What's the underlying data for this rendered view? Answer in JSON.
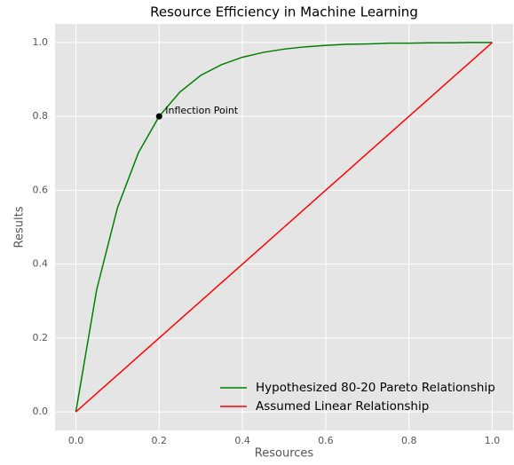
{
  "chart_data": {
    "type": "line",
    "title": "Resource Efficiency in Machine Learning",
    "xlabel": "Resources",
    "ylabel": "Results",
    "x": [
      0,
      0.05,
      0.1,
      0.15,
      0.2,
      0.25,
      0.3,
      0.35,
      0.4,
      0.45,
      0.5,
      0.55,
      0.6,
      0.65,
      0.7,
      0.75,
      0.8,
      0.85,
      0.9,
      0.95,
      1.0
    ],
    "series": [
      {
        "name": "Hypothesized 80-20 Pareto Relationship",
        "color": "#008000",
        "values": [
          0,
          0.331,
          0.553,
          0.701,
          0.8,
          0.866,
          0.911,
          0.94,
          0.96,
          0.973,
          0.982,
          0.988,
          0.992,
          0.995,
          0.996,
          0.998,
          0.998,
          0.999,
          0.999,
          1.0,
          1.0
        ]
      },
      {
        "name": "Assumed Linear Relationship",
        "color": "#ff0000",
        "values": [
          0,
          0.05,
          0.1,
          0.15,
          0.2,
          0.25,
          0.3,
          0.35,
          0.4,
          0.45,
          0.5,
          0.55,
          0.6,
          0.65,
          0.7,
          0.75,
          0.8,
          0.85,
          0.9,
          0.95,
          1.0
        ]
      }
    ],
    "annotations": [
      {
        "text": "Inflection Point",
        "x": 0.2,
        "y": 0.8
      }
    ],
    "xlim": [
      -0.05,
      1.05
    ],
    "ylim": [
      -0.05,
      1.05
    ],
    "xticks": [
      {
        "value": 0,
        "label": "0.0"
      },
      0.2,
      0.4,
      0.6,
      0.8,
      {
        "value": 1,
        "label": "1.0"
      }
    ],
    "yticks": [
      {
        "value": 0,
        "label": "0.0"
      },
      0.2,
      0.4,
      0.6,
      0.8,
      {
        "value": 1,
        "label": "1.0"
      }
    ],
    "grid": true,
    "legend": "lower right"
  }
}
